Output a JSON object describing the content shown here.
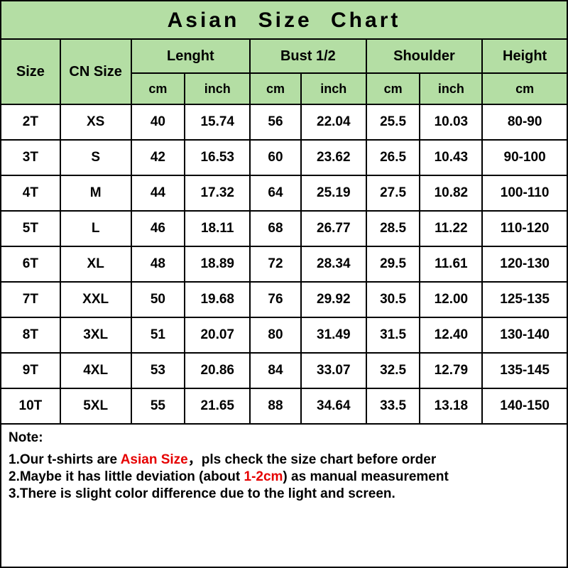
{
  "type": "table",
  "title": "Asian  Size  Chart",
  "header_bg": "#b4dea4",
  "row_bg": "#ffffff",
  "border_color": "#000000",
  "text_color": "#000000",
  "highlight_color": "#e60000",
  "title_fontsize": 30,
  "header_fontsize": 20,
  "subheader_fontsize": 18,
  "cell_fontsize": 19,
  "notes_fontsize": 19,
  "title_height": 54,
  "header_row1_height": 48,
  "header_row2_height": 44,
  "data_row_height": 50,
  "col_widths_pct": [
    10.5,
    12.5,
    9.5,
    11.5,
    9.0,
    11.5,
    9.5,
    11.0,
    15.0
  ],
  "group_headers": [
    "Size",
    "CN Size",
    "Lenght",
    "Bust 1/2",
    "Shoulder",
    "Height"
  ],
  "sub_headers": [
    "cm",
    "inch",
    "cm",
    "inch",
    "cm",
    "inch",
    "cm"
  ],
  "rows": [
    [
      "2T",
      "XS",
      "40",
      "15.74",
      "56",
      "22.04",
      "25.5",
      "10.03",
      "80-90"
    ],
    [
      "3T",
      "S",
      "42",
      "16.53",
      "60",
      "23.62",
      "26.5",
      "10.43",
      "90-100"
    ],
    [
      "4T",
      "M",
      "44",
      "17.32",
      "64",
      "25.19",
      "27.5",
      "10.82",
      "100-110"
    ],
    [
      "5T",
      "L",
      "46",
      "18.11",
      "68",
      "26.77",
      "28.5",
      "11.22",
      "110-120"
    ],
    [
      "6T",
      "XL",
      "48",
      "18.89",
      "72",
      "28.34",
      "29.5",
      "11.61",
      "120-130"
    ],
    [
      "7T",
      "XXL",
      "50",
      "19.68",
      "76",
      "29.92",
      "30.5",
      "12.00",
      "125-135"
    ],
    [
      "8T",
      "3XL",
      "51",
      "20.07",
      "80",
      "31.49",
      "31.5",
      "12.40",
      "130-140"
    ],
    [
      "9T",
      "4XL",
      "53",
      "20.86",
      "84",
      "33.07",
      "32.5",
      "12.79",
      "135-145"
    ],
    [
      "10T",
      "5XL",
      "55",
      "21.65",
      "88",
      "34.64",
      "33.5",
      "13.18",
      "140-150"
    ]
  ],
  "notes_label": "Note:",
  "notes": [
    {
      "pre": "1.Our t-shirts are ",
      "hl": "Asian Size",
      "post": "，pls check the size chart before order"
    },
    {
      "pre": "2.Maybe it has little deviation (about ",
      "hl": "1-2cm",
      "post": ") as manual measurement"
    },
    {
      "pre": "3.There is slight color difference due to the light and screen.",
      "hl": "",
      "post": ""
    }
  ]
}
